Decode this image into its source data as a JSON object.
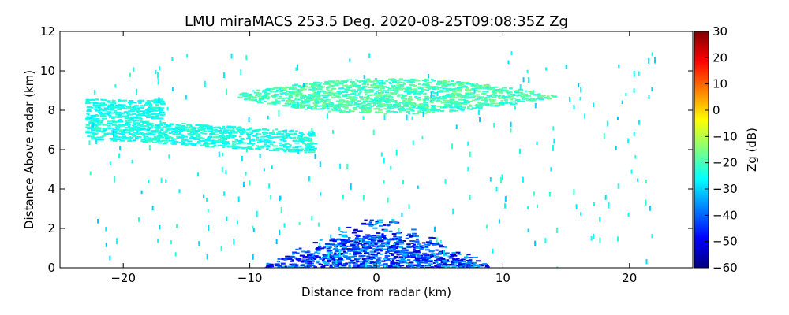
{
  "chart_data": {
    "type": "heatmap",
    "title": "LMU miraMACS 253.5 Deg. 2020-08-25T09:08:35Z  Zg",
    "xlabel": "Distance from radar (km)",
    "ylabel": "Distance Above radar  (km)",
    "xlim": [
      -25,
      25
    ],
    "ylim": [
      0,
      12
    ],
    "xticks": [
      -20,
      -10,
      0,
      10,
      20
    ],
    "yticks": [
      0,
      2,
      4,
      6,
      8,
      10,
      12
    ],
    "colorbar": {
      "label": "Zg (dB)",
      "range": [
        -60,
        30
      ],
      "ticks": [
        30,
        20,
        10,
        0,
        -10,
        -20,
        -30,
        -40,
        -50,
        -60
      ],
      "colormap": "jet"
    },
    "regions": [
      {
        "x_range": [
          -11,
          14
        ],
        "y_range": [
          7.7,
          9.8
        ],
        "value_range": [
          -25,
          -15
        ]
      },
      {
        "x_range": [
          -23,
          -5
        ],
        "y_range": [
          5.8,
          7.6
        ],
        "value_range": [
          -28,
          -20
        ]
      },
      {
        "x_range": [
          -23,
          -17
        ],
        "y_range": [
          7.6,
          8.6
        ],
        "value_range": [
          -28,
          -22
        ]
      },
      {
        "x_range": [
          -9,
          9
        ],
        "y_range": [
          0,
          3
        ],
        "value_range": [
          -55,
          -30
        ]
      }
    ],
    "grid": false
  },
  "colors": {
    "frame": "#000000",
    "background": "#ffffff"
  }
}
